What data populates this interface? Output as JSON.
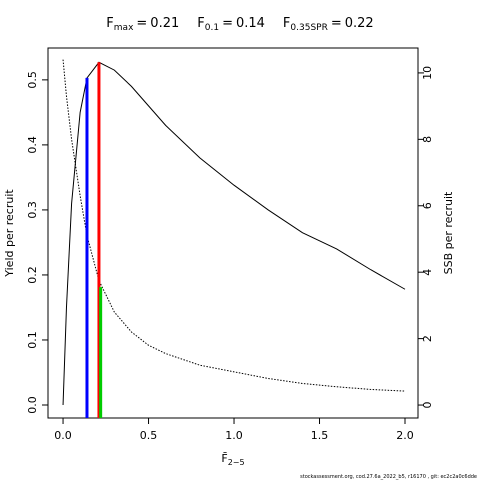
{
  "chart_data": {
    "type": "line",
    "references": [
      {
        "symbol": "F",
        "subscript": "max",
        "relation": "=",
        "value": 0.21,
        "color": "#ff0000",
        "top": 0.527,
        "axis": "y"
      },
      {
        "symbol": "F",
        "subscript": "0.1",
        "relation": "=",
        "value": 0.14,
        "color": "#0000ff",
        "top": 0.503,
        "axis": "y"
      },
      {
        "symbol": "F",
        "subscript": "0.35SPR",
        "relation": "=",
        "value": 0.22,
        "color": "#00cc00",
        "top": 3.55,
        "axis": "y2"
      }
    ],
    "xlabel": {
      "symbol": "F̄",
      "subscript": "2−5"
    },
    "ylabel": "Yield per recruit",
    "y2label": "SSB per recruit",
    "footer": "stockassessment.org, cod.27.6a_2022_b5, r16170 , git: ec2c2a0c6dde",
    "x": [
      0,
      0.02,
      0.05,
      0.1,
      0.14,
      0.21,
      0.3,
      0.4,
      0.5,
      0.6,
      0.8,
      1.0,
      1.2,
      1.4,
      1.6,
      1.8,
      2.0
    ],
    "series": [
      {
        "name": "Yield per recruit",
        "color": "#000000",
        "dash": "none",
        "axis": "y",
        "values": [
          0,
          0.15,
          0.31,
          0.45,
          0.503,
          0.527,
          0.515,
          0.49,
          0.46,
          0.43,
          0.38,
          0.338,
          0.3,
          0.265,
          0.24,
          0.208,
          0.178
        ]
      },
      {
        "name": "SSB per recruit",
        "color": "#000000",
        "dash": "1.5,1.5",
        "axis": "y2",
        "values": [
          10.4,
          9.3,
          8.0,
          6.3,
          5.1,
          3.75,
          2.8,
          2.2,
          1.8,
          1.55,
          1.2,
          1.0,
          0.8,
          0.65,
          0.55,
          0.47,
          0.42
        ]
      }
    ],
    "xlim": [
      -0.088,
      2.076
    ],
    "xticks": [
      {
        "value": 0,
        "label": "0.0"
      },
      {
        "value": 0.5,
        "label": "0.5"
      },
      {
        "value": 1,
        "label": "1.0"
      },
      {
        "value": 1.5,
        "label": "1.5"
      },
      {
        "value": 2,
        "label": "2.0"
      }
    ],
    "ylim": [
      -0.02,
      0.549
    ],
    "yticks": [
      {
        "value": 0,
        "label": "0.0"
      },
      0.1,
      0.2,
      0.3,
      0.4,
      0.5
    ],
    "y2lim": [
      -0.39,
      10.75
    ],
    "y2ticks": [
      0,
      2,
      4,
      6,
      8,
      10
    ]
  }
}
